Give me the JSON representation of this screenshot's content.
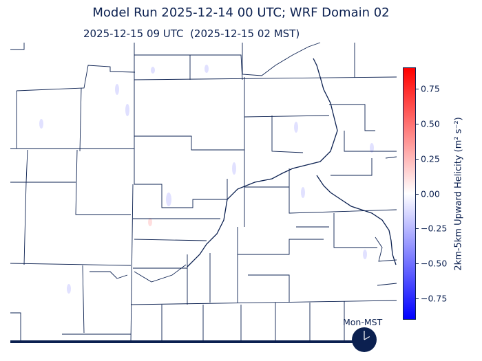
{
  "title": "Model Run 2025-12-14 00 UTC; WRF Domain 02",
  "subtitle": "2025-12-15 09 UTC  (2025-12-15 02 MST)",
  "colorbar": {
    "label": "2km-5km Upward Helicity (m² s⁻²)",
    "range": [
      -0.9,
      0.9
    ],
    "colormap": "bwr",
    "colors": {
      "min": "#0000ff",
      "mid": "#ffffff",
      "max": "#ff0000"
    },
    "ticks": [
      {
        "value": 0.75,
        "label": "0.75"
      },
      {
        "value": 0.5,
        "label": "0.50"
      },
      {
        "value": 0.25,
        "label": "0.25"
      },
      {
        "value": 0.0,
        "label": "0.00"
      },
      {
        "value": -0.25,
        "label": "−0.25"
      },
      {
        "value": -0.5,
        "label": "−0.50"
      },
      {
        "value": -0.75,
        "label": "−0.75"
      }
    ]
  },
  "clock": {
    "label": "Mon-MST",
    "icon": "clock-icon",
    "hour": 2,
    "minute": 0
  },
  "map": {
    "border_color": "#0b2050"
  }
}
